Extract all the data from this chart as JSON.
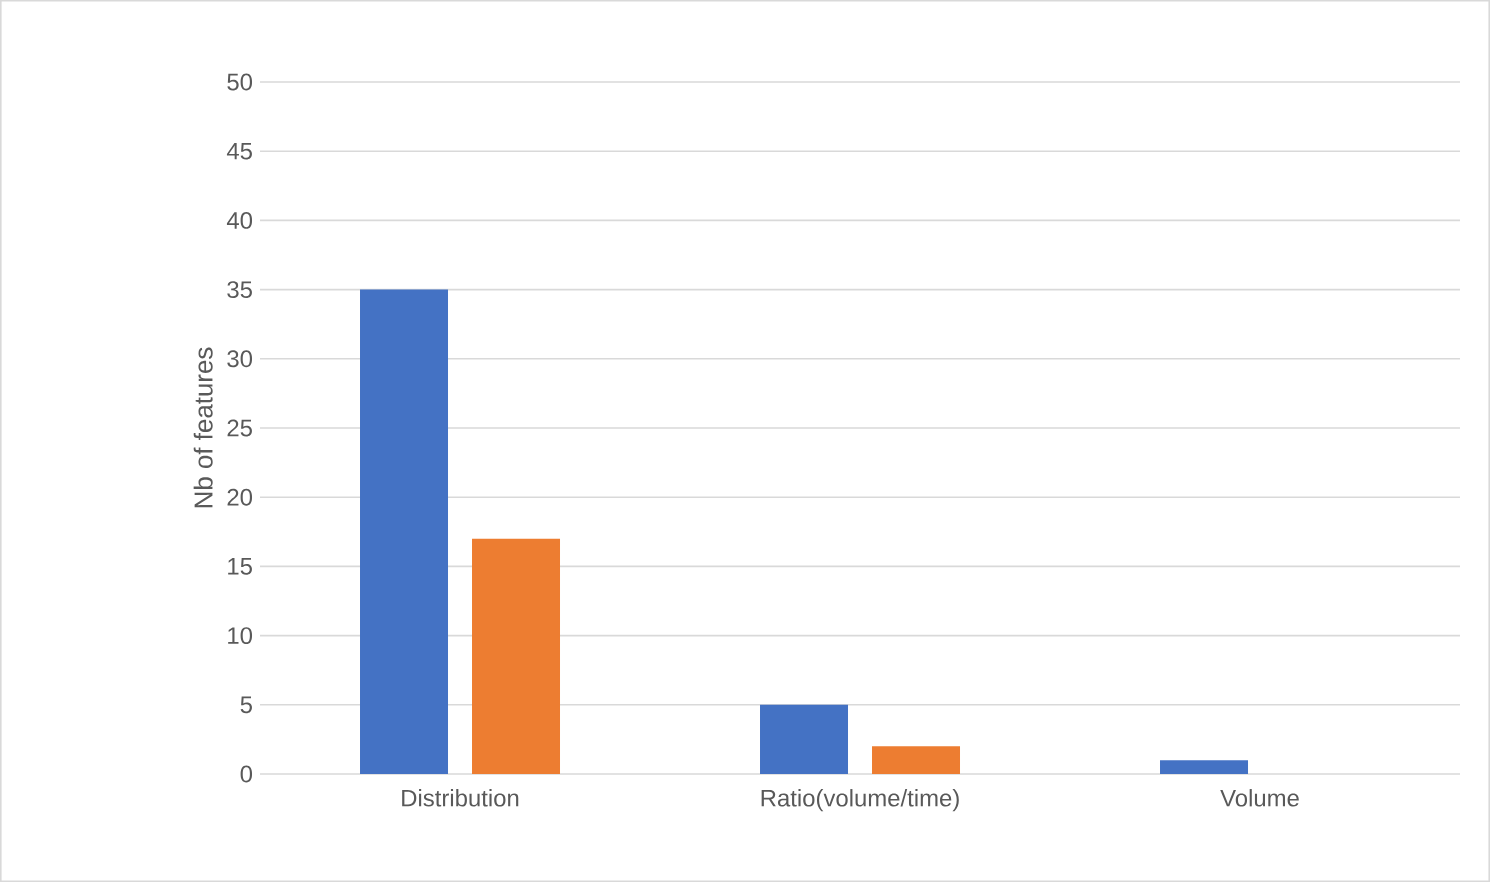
{
  "chart_data": {
    "type": "bar",
    "ylabel": "Nb of features",
    "categories": [
      "Distribution",
      "Ratio(volume/time)",
      "Volume"
    ],
    "series": [
      {
        "color": "#4472c4",
        "values": [
          35,
          5,
          1
        ]
      },
      {
        "color": "#ed7d31",
        "values": [
          17,
          2,
          0
        ]
      }
    ],
    "ylim": [
      0,
      50
    ],
    "yticks": [
      0,
      5,
      10,
      15,
      20,
      25,
      30,
      35,
      40,
      45,
      50
    ],
    "grid": "y"
  }
}
